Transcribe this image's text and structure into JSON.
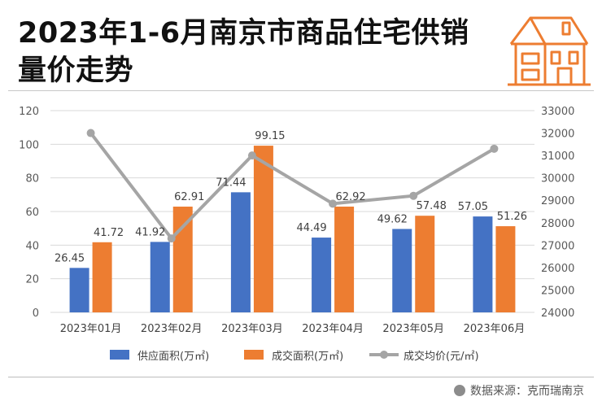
{
  "title": "2023年1-6月南京市商品住宅供销量价走势",
  "source": "数据来源：克而瑞南京",
  "colors": {
    "supply": "#4472C4",
    "deal": "#ED7D31",
    "price": "#A5A5A5",
    "logo": "#ED7D31"
  },
  "logo_icon": "house-icon",
  "chart_data": {
    "type": "bar",
    "categories": [
      "2023年01月",
      "2023年02月",
      "2023年03月",
      "2023年04月",
      "2023年05月",
      "2023年06月"
    ],
    "series": [
      {
        "name": "供应面积(万㎡)",
        "type": "bar",
        "axis": "left",
        "values": [
          26.45,
          41.92,
          71.44,
          44.49,
          49.62,
          57.05
        ],
        "labels": [
          "26.45",
          "41.92",
          "71.44",
          "44.49",
          "49.62",
          "57.05"
        ]
      },
      {
        "name": "成交面积(万㎡)",
        "type": "bar",
        "axis": "left",
        "values": [
          41.72,
          62.91,
          99.15,
          62.92,
          57.48,
          51.26
        ],
        "labels": [
          "41.72",
          "62.91",
          "99.15",
          "62.92",
          "57.48",
          "51.26"
        ]
      },
      {
        "name": "成交均价(元/㎡)",
        "type": "line",
        "axis": "right",
        "values": [
          32000,
          27300,
          31000,
          28850,
          29200,
          31300
        ]
      }
    ],
    "ylim": [
      0,
      120
    ],
    "yticks": [
      "0",
      "20",
      "40",
      "60",
      "80",
      "100",
      "120"
    ],
    "y2lim": [
      24000,
      33000
    ],
    "y2ticks": [
      "24000",
      "25000",
      "26000",
      "27000",
      "28000",
      "29000",
      "30000",
      "31000",
      "32000",
      "33000"
    ],
    "grid": true,
    "legend": "bottom"
  }
}
